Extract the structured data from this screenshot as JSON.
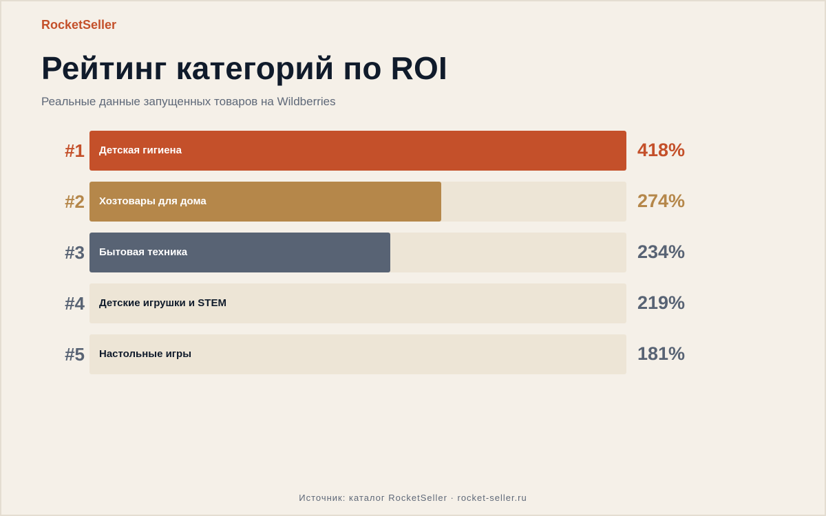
{
  "brand": "RocketSeller",
  "title": "Рейтинг категорий по ROI",
  "subtitle": "Реальные данные запущенных товаров на Wildberries",
  "footer": "Источник: каталог RocketSeller · rocket-seller.ru",
  "colors": {
    "background": "#f5f0e8",
    "track": "#ede5d6",
    "rank1": "#c4502a",
    "rank2": "#b5874a",
    "rank3": "#586374",
    "default_text": "#586374",
    "label_dark": "#101b2b",
    "label_light": "#ffffff"
  },
  "chart_data": {
    "type": "bar",
    "orientation": "horizontal",
    "unit": "%",
    "categories": [
      "Детская гигиена",
      "Хозтовары для дома",
      "Бытовая техника",
      "Детские игрушки и STEM",
      "Настольные игры"
    ],
    "ranks": [
      "#1",
      "#2",
      "#3",
      "#4",
      "#5"
    ],
    "values": [
      418,
      274,
      234,
      219,
      181
    ],
    "value_labels": [
      "418%",
      "274%",
      "234%",
      "219%",
      "181%"
    ],
    "filled": [
      true,
      true,
      true,
      false,
      false
    ],
    "bar_colors": [
      "#c4502a",
      "#b5874a",
      "#586374",
      null,
      null
    ],
    "xlim": [
      0,
      418
    ]
  }
}
